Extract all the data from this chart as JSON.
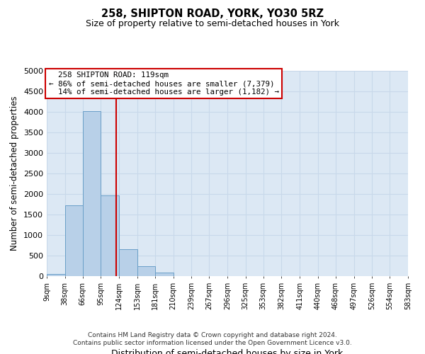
{
  "title": "258, SHIPTON ROAD, YORK, YO30 5RZ",
  "subtitle": "Size of property relative to semi-detached houses in York",
  "xlabel": "Distribution of semi-detached houses by size in York",
  "ylabel": "Number of semi-detached properties",
  "bin_edges": [
    9,
    38,
    66,
    95,
    124,
    153,
    181,
    210,
    239,
    267,
    296,
    325,
    353,
    382,
    411,
    440,
    468,
    497,
    526,
    554,
    583
  ],
  "bin_counts": [
    50,
    1730,
    4020,
    1960,
    650,
    240,
    80,
    0,
    0,
    0,
    0,
    0,
    0,
    0,
    0,
    0,
    0,
    0,
    0,
    0
  ],
  "property_size": 119,
  "property_label": "258 SHIPTON ROAD: 119sqm",
  "pct_smaller": 86,
  "pct_larger": 14,
  "n_smaller": 7379,
  "n_larger": 1182,
  "vline_x": 119,
  "ylim": [
    0,
    5000
  ],
  "yticks": [
    0,
    500,
    1000,
    1500,
    2000,
    2500,
    3000,
    3500,
    4000,
    4500,
    5000
  ],
  "bar_color": "#b8d0e8",
  "bar_edge_color": "#6a9fc8",
  "vline_color": "#cc0000",
  "box_edge_color": "#cc0000",
  "grid_color": "#c8d8ea",
  "bg_color": "#dce8f4",
  "footer_line1": "Contains HM Land Registry data © Crown copyright and database right 2024.",
  "footer_line2": "Contains public sector information licensed under the Open Government Licence v3.0."
}
